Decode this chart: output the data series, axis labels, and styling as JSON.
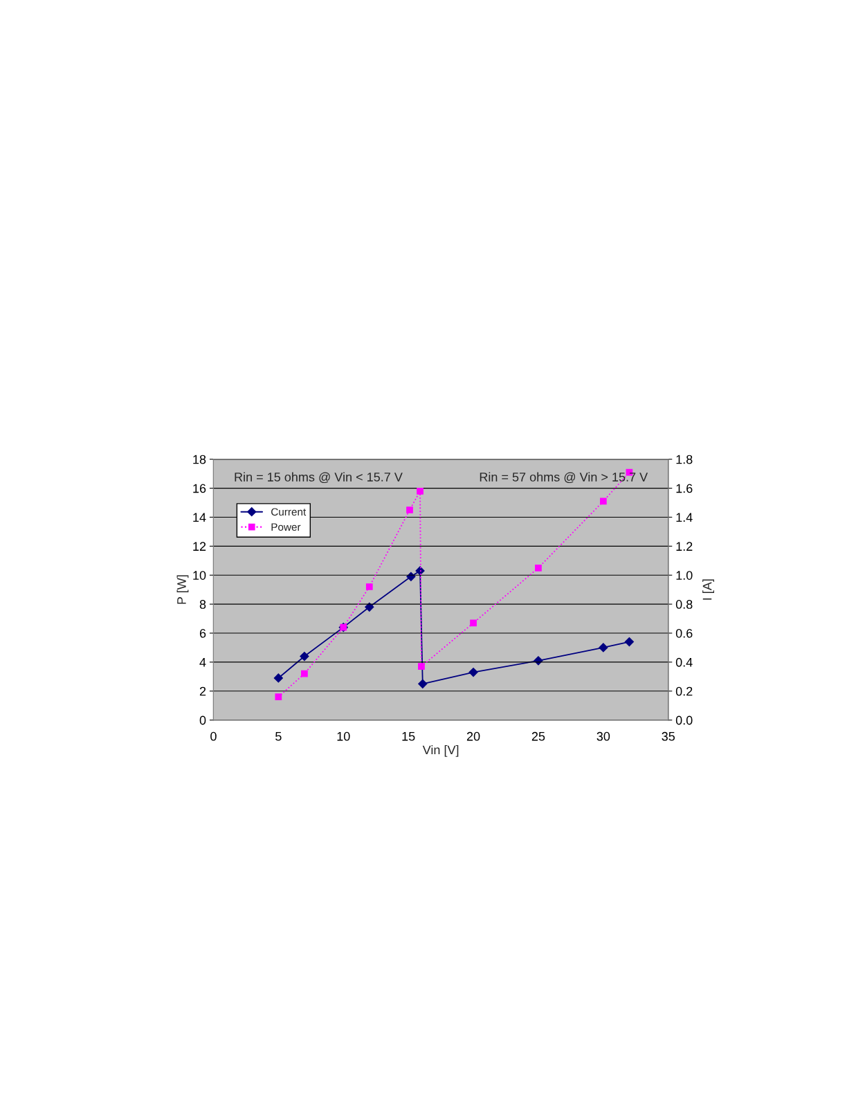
{
  "chart_data": {
    "type": "line",
    "xlabel": "Vin [V]",
    "ylabel": "P [W]",
    "y2label": "I [A]",
    "xlim": [
      0,
      35
    ],
    "xticks": [
      0,
      5,
      10,
      15,
      20,
      25,
      30,
      35
    ],
    "ylim": [
      0,
      18
    ],
    "yticks": [
      0,
      2,
      4,
      6,
      8,
      10,
      12,
      14,
      16,
      18
    ],
    "y2lim": [
      0,
      1.8
    ],
    "y2ticks": [
      {
        "value": 0,
        "label": "0.0"
      },
      {
        "value": 0.2,
        "label": "0.2"
      },
      {
        "value": 0.4,
        "label": "0.4"
      },
      {
        "value": 0.6,
        "label": "0.6"
      },
      {
        "value": 0.8,
        "label": "0.8"
      },
      {
        "value": 1.0,
        "label": "1.0"
      },
      {
        "value": 1.2,
        "label": "1.2"
      },
      {
        "value": 1.4,
        "label": "1.4"
      },
      {
        "value": 1.6,
        "label": "1.6"
      },
      {
        "value": 1.8,
        "label": "1.8"
      }
    ],
    "grid": "y",
    "legend": "top left",
    "annotations": [
      "Rin = 15 ohms @ Vin < 15.7 V",
      "Rin = 57 ohms @ Vin > 15.7 V"
    ],
    "series": [
      {
        "name": "Current",
        "color": "#000080",
        "axis": "y2",
        "marker": "diamond",
        "line_style": "solid",
        "x": [
          5,
          7,
          10,
          12,
          15.2,
          15.9,
          16.1,
          20,
          25,
          30,
          32
        ],
        "values": [
          0.29,
          0.44,
          0.64,
          0.78,
          0.99,
          1.03,
          0.25,
          0.33,
          0.41,
          0.5,
          0.54
        ]
      },
      {
        "name": "Power",
        "color": "#ff00ff",
        "axis": "y",
        "marker": "square",
        "line_style": "dotted",
        "x": [
          5,
          7,
          10,
          12,
          15.1,
          15.9,
          16.0,
          20,
          25,
          30,
          32
        ],
        "values": [
          1.6,
          3.2,
          6.4,
          9.2,
          14.5,
          15.8,
          3.7,
          6.7,
          10.5,
          15.1,
          17.1
        ]
      }
    ]
  }
}
